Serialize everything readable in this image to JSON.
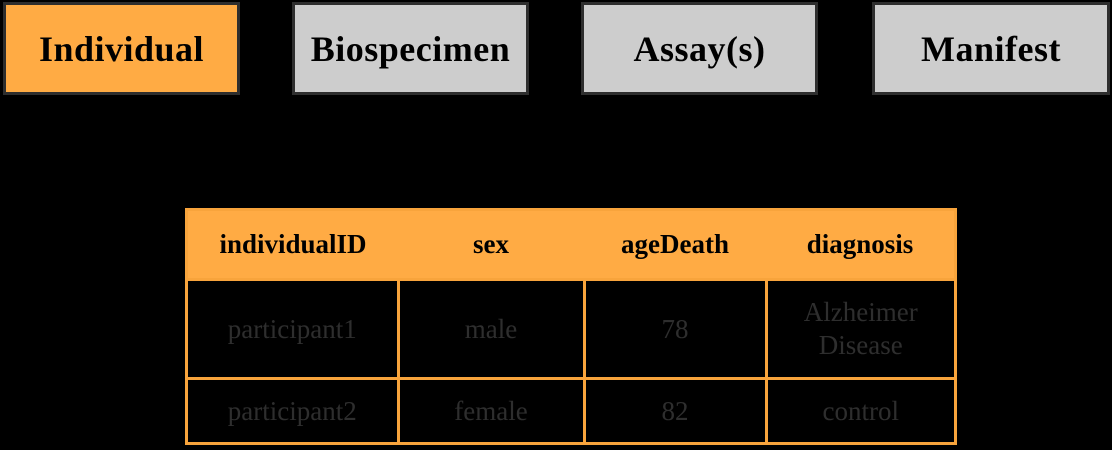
{
  "tabs": [
    {
      "label": "Individual",
      "active": true
    },
    {
      "label": "Biospecimen",
      "active": false
    },
    {
      "label": "Assay(s)",
      "active": false
    },
    {
      "label": "Manifest",
      "active": false
    }
  ],
  "table": {
    "columns": [
      "individualID",
      "sex",
      "ageDeath",
      "diagnosis"
    ],
    "rows": [
      [
        "participant1",
        "male",
        "78",
        "Alzheimer Disease"
      ],
      [
        "participant2",
        "female",
        "82",
        "control"
      ]
    ]
  },
  "colors": {
    "background": "#000000",
    "active_tab_orange": "#ffab44",
    "inactive_tab_gray": "#cdcdcd",
    "tab_border": "#2e2e2e",
    "table_border_orange": "#f8a43c",
    "table_frame_red_accent": "#c3392a",
    "header_fill": "#ffab44",
    "body_text": "#2e2e2e"
  }
}
